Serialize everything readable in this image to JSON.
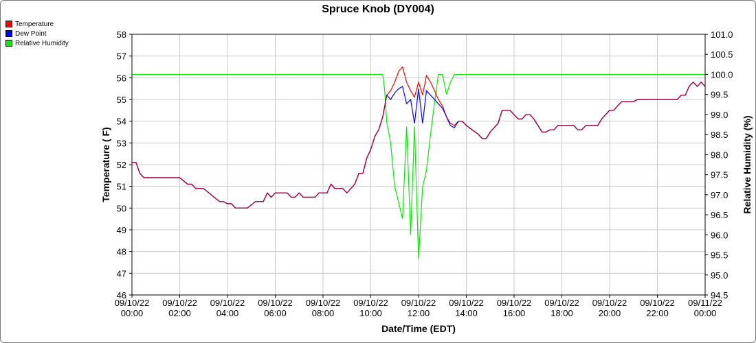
{
  "chart_data": {
    "type": "line",
    "title": "Spruce Knob (DY004)",
    "xlabel": "Date/Time (EDT)",
    "ylabel": "Temperature ( F)",
    "y2label": "Relative Humidity (%)",
    "xlim": [
      0,
      24
    ],
    "ylim": [
      46,
      58
    ],
    "y2lim": [
      94.5,
      101.0
    ],
    "grid": true,
    "legend_position": "top-left",
    "colors": {
      "Temperature": "#ff0000",
      "Dew Point": "#0000ff",
      "Relative Humidity": "#00ee00",
      "overlap": "#b0003a"
    },
    "x_tick_labels": [
      {
        "x": 0,
        "date": "09/10/22",
        "time": "00:00"
      },
      {
        "x": 2,
        "date": "09/10/22",
        "time": "02:00"
      },
      {
        "x": 4,
        "date": "09/10/22",
        "time": "04:00"
      },
      {
        "x": 6,
        "date": "09/10/22",
        "time": "06:00"
      },
      {
        "x": 8,
        "date": "09/10/22",
        "time": "08:00"
      },
      {
        "x": 10,
        "date": "09/10/22",
        "time": "10:00"
      },
      {
        "x": 12,
        "date": "09/10/22",
        "time": "12:00"
      },
      {
        "x": 14,
        "date": "09/10/22",
        "time": "14:00"
      },
      {
        "x": 16,
        "date": "09/10/22",
        "time": "16:00"
      },
      {
        "x": 18,
        "date": "09/10/22",
        "time": "18:00"
      },
      {
        "x": 20,
        "date": "09/10/22",
        "time": "20:00"
      },
      {
        "x": 22,
        "date": "09/10/22",
        "time": "22:00"
      },
      {
        "x": 24,
        "date": "09/11/22",
        "time": "00:00"
      }
    ],
    "y_ticks": [
      46,
      47,
      48,
      49,
      50,
      51,
      52,
      53,
      54,
      55,
      56,
      57,
      58
    ],
    "y2_ticks": [
      "94.5",
      "95.0",
      "95.5",
      "96.0",
      "96.5",
      "97.0",
      "97.5",
      "98.0",
      "98.5",
      "99.0",
      "99.5",
      "100.0",
      "100.5",
      "101.0"
    ],
    "series": [
      {
        "name": "Temperature",
        "axis": "left",
        "points": [
          [
            0,
            52.1
          ],
          [
            0.17,
            52.1
          ],
          [
            0.33,
            51.6
          ],
          [
            0.5,
            51.4
          ],
          [
            1,
            51.4
          ],
          [
            1.5,
            51.4
          ],
          [
            2,
            51.4
          ],
          [
            2.33,
            51.1
          ],
          [
            2.5,
            51.1
          ],
          [
            2.67,
            50.9
          ],
          [
            3,
            50.9
          ],
          [
            3.33,
            50.6
          ],
          [
            3.67,
            50.3
          ],
          [
            3.83,
            50.3
          ],
          [
            4,
            50.2
          ],
          [
            4.17,
            50.2
          ],
          [
            4.33,
            50.0
          ],
          [
            4.83,
            50.0
          ],
          [
            5.17,
            50.3
          ],
          [
            5.5,
            50.3
          ],
          [
            5.67,
            50.7
          ],
          [
            5.83,
            50.5
          ],
          [
            6,
            50.7
          ],
          [
            6.5,
            50.7
          ],
          [
            6.67,
            50.5
          ],
          [
            6.83,
            50.5
          ],
          [
            7,
            50.7
          ],
          [
            7.17,
            50.5
          ],
          [
            7.67,
            50.5
          ],
          [
            7.83,
            50.7
          ],
          [
            8.17,
            50.7
          ],
          [
            8.33,
            51.1
          ],
          [
            8.5,
            50.9
          ],
          [
            8.83,
            50.9
          ],
          [
            9,
            50.7
          ],
          [
            9.33,
            51.1
          ],
          [
            9.5,
            51.6
          ],
          [
            9.67,
            51.6
          ],
          [
            9.83,
            52.3
          ],
          [
            10,
            52.7
          ],
          [
            10.17,
            53.3
          ],
          [
            10.33,
            53.6
          ],
          [
            10.5,
            54.2
          ],
          [
            10.67,
            55.2
          ],
          [
            10.83,
            55.4
          ],
          [
            11,
            55.8
          ],
          [
            11.17,
            56.3
          ],
          [
            11.33,
            56.5
          ],
          [
            11.5,
            55.8
          ],
          [
            11.67,
            55.4
          ],
          [
            11.83,
            55.1
          ],
          [
            12,
            55.8
          ],
          [
            12.17,
            55.2
          ],
          [
            12.33,
            56.1
          ],
          [
            12.5,
            55.8
          ],
          [
            12.67,
            55.4
          ],
          [
            12.83,
            55.0
          ],
          [
            13,
            54.7
          ],
          [
            13.17,
            54.2
          ],
          [
            13.33,
            53.9
          ],
          [
            13.5,
            53.8
          ],
          [
            13.67,
            54.0
          ],
          [
            13.83,
            54.0
          ],
          [
            14,
            53.8
          ],
          [
            14.5,
            53.4
          ],
          [
            14.67,
            53.2
          ],
          [
            14.83,
            53.2
          ],
          [
            15,
            53.5
          ],
          [
            15.33,
            53.9
          ],
          [
            15.5,
            54.5
          ],
          [
            15.83,
            54.5
          ],
          [
            16,
            54.3
          ],
          [
            16.17,
            54.1
          ],
          [
            16.33,
            54.1
          ],
          [
            16.5,
            54.3
          ],
          [
            16.67,
            54.3
          ],
          [
            16.83,
            54.1
          ],
          [
            17,
            53.8
          ],
          [
            17.17,
            53.5
          ],
          [
            17.33,
            53.5
          ],
          [
            17.5,
            53.6
          ],
          [
            17.67,
            53.6
          ],
          [
            17.83,
            53.8
          ],
          [
            18.5,
            53.8
          ],
          [
            18.67,
            53.6
          ],
          [
            18.83,
            53.6
          ],
          [
            19,
            53.8
          ],
          [
            19.5,
            53.8
          ],
          [
            19.67,
            54.1
          ],
          [
            19.83,
            54.3
          ],
          [
            20,
            54.5
          ],
          [
            20.17,
            54.5
          ],
          [
            20.33,
            54.7
          ],
          [
            20.5,
            54.9
          ],
          [
            21,
            54.9
          ],
          [
            21.17,
            55.0
          ],
          [
            21.5,
            55.0
          ],
          [
            22,
            55.0
          ],
          [
            22.5,
            55.0
          ],
          [
            22.83,
            55.0
          ],
          [
            23,
            55.2
          ],
          [
            23.17,
            55.2
          ],
          [
            23.33,
            55.6
          ],
          [
            23.5,
            55.8
          ],
          [
            23.67,
            55.6
          ],
          [
            23.83,
            55.8
          ],
          [
            24,
            55.6
          ]
        ]
      },
      {
        "name": "Dew Point",
        "axis": "left",
        "points": [
          [
            0,
            52.1
          ],
          [
            0.17,
            52.1
          ],
          [
            0.33,
            51.6
          ],
          [
            0.5,
            51.4
          ],
          [
            1,
            51.4
          ],
          [
            1.5,
            51.4
          ],
          [
            2,
            51.4
          ],
          [
            2.33,
            51.1
          ],
          [
            2.5,
            51.1
          ],
          [
            2.67,
            50.9
          ],
          [
            3,
            50.9
          ],
          [
            3.33,
            50.6
          ],
          [
            3.67,
            50.3
          ],
          [
            3.83,
            50.3
          ],
          [
            4,
            50.2
          ],
          [
            4.17,
            50.2
          ],
          [
            4.33,
            50.0
          ],
          [
            4.83,
            50.0
          ],
          [
            5.17,
            50.3
          ],
          [
            5.5,
            50.3
          ],
          [
            5.67,
            50.7
          ],
          [
            5.83,
            50.5
          ],
          [
            6,
            50.7
          ],
          [
            6.5,
            50.7
          ],
          [
            6.67,
            50.5
          ],
          [
            6.83,
            50.5
          ],
          [
            7,
            50.7
          ],
          [
            7.17,
            50.5
          ],
          [
            7.67,
            50.5
          ],
          [
            7.83,
            50.7
          ],
          [
            8.17,
            50.7
          ],
          [
            8.33,
            51.1
          ],
          [
            8.5,
            50.9
          ],
          [
            8.83,
            50.9
          ],
          [
            9,
            50.7
          ],
          [
            9.33,
            51.1
          ],
          [
            9.5,
            51.6
          ],
          [
            9.67,
            51.6
          ],
          [
            9.83,
            52.3
          ],
          [
            10,
            52.7
          ],
          [
            10.17,
            53.3
          ],
          [
            10.33,
            53.6
          ],
          [
            10.5,
            54.2
          ],
          [
            10.67,
            55.2
          ],
          [
            10.83,
            55.0
          ],
          [
            11,
            55.3
          ],
          [
            11.17,
            55.5
          ],
          [
            11.33,
            55.6
          ],
          [
            11.5,
            54.8
          ],
          [
            11.67,
            55.0
          ],
          [
            11.83,
            53.9
          ],
          [
            12,
            55.5
          ],
          [
            12.17,
            53.9
          ],
          [
            12.33,
            55.4
          ],
          [
            12.5,
            55.2
          ],
          [
            12.67,
            55.0
          ],
          [
            12.83,
            54.8
          ],
          [
            13,
            54.6
          ],
          [
            13.17,
            54.2
          ],
          [
            13.33,
            53.8
          ],
          [
            13.5,
            53.7
          ],
          [
            13.67,
            54.0
          ],
          [
            13.83,
            54.0
          ],
          [
            14,
            53.8
          ],
          [
            14.5,
            53.4
          ],
          [
            14.67,
            53.2
          ],
          [
            14.83,
            53.2
          ],
          [
            15,
            53.5
          ],
          [
            15.33,
            53.9
          ],
          [
            15.5,
            54.5
          ],
          [
            15.83,
            54.5
          ],
          [
            16,
            54.3
          ],
          [
            16.17,
            54.1
          ],
          [
            16.33,
            54.1
          ],
          [
            16.5,
            54.3
          ],
          [
            16.67,
            54.3
          ],
          [
            16.83,
            54.1
          ],
          [
            17,
            53.8
          ],
          [
            17.17,
            53.5
          ],
          [
            17.33,
            53.5
          ],
          [
            17.5,
            53.6
          ],
          [
            17.67,
            53.6
          ],
          [
            17.83,
            53.8
          ],
          [
            18.5,
            53.8
          ],
          [
            18.67,
            53.6
          ],
          [
            18.83,
            53.6
          ],
          [
            19,
            53.8
          ],
          [
            19.5,
            53.8
          ],
          [
            19.67,
            54.1
          ],
          [
            19.83,
            54.3
          ],
          [
            20,
            54.5
          ],
          [
            20.17,
            54.5
          ],
          [
            20.33,
            54.7
          ],
          [
            20.5,
            54.9
          ],
          [
            21,
            54.9
          ],
          [
            21.17,
            55.0
          ],
          [
            21.5,
            55.0
          ],
          [
            22,
            55.0
          ],
          [
            22.5,
            55.0
          ],
          [
            22.83,
            55.0
          ],
          [
            23,
            55.2
          ],
          [
            23.17,
            55.2
          ],
          [
            23.33,
            55.6
          ],
          [
            23.5,
            55.8
          ],
          [
            23.67,
            55.6
          ],
          [
            23.83,
            55.8
          ],
          [
            24,
            55.6
          ]
        ]
      },
      {
        "name": "Relative Humidity",
        "axis": "right",
        "points": [
          [
            0,
            100.0
          ],
          [
            10.5,
            100.0
          ],
          [
            10.58,
            99.6
          ],
          [
            10.67,
            98.8
          ],
          [
            10.83,
            98.3
          ],
          [
            11,
            97.2
          ],
          [
            11.17,
            96.8
          ],
          [
            11.33,
            96.4
          ],
          [
            11.5,
            98.7
          ],
          [
            11.67,
            96.0
          ],
          [
            11.83,
            98.7
          ],
          [
            12,
            95.4
          ],
          [
            12.17,
            97.2
          ],
          [
            12.33,
            97.6
          ],
          [
            12.5,
            98.5
          ],
          [
            12.67,
            99.3
          ],
          [
            12.83,
            100.0
          ],
          [
            13,
            100.0
          ],
          [
            13.17,
            99.5
          ],
          [
            13.33,
            99.8
          ],
          [
            13.5,
            100.0
          ],
          [
            24,
            100.0
          ]
        ]
      }
    ]
  }
}
